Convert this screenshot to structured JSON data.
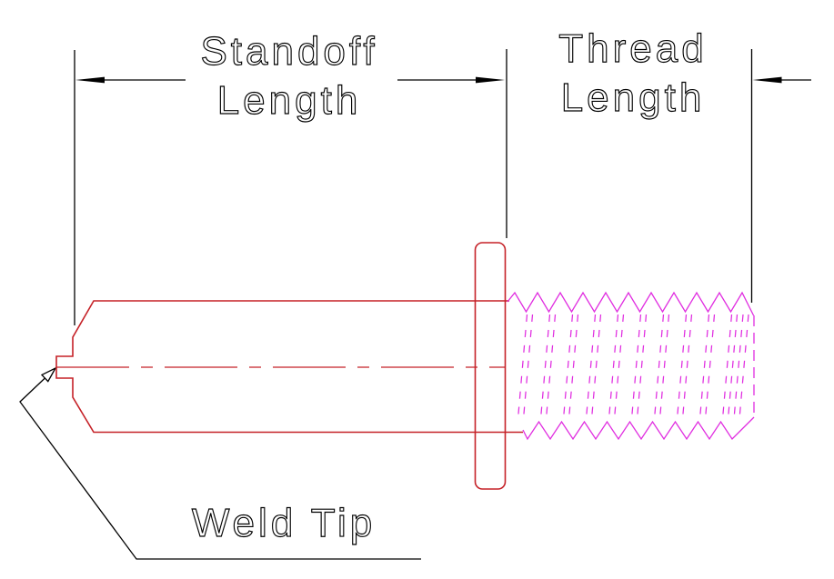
{
  "labels": {
    "standoff_dimension": {
      "line1": "Standoff",
      "line2": "Length"
    },
    "thread_dimension": {
      "line1": "Thread",
      "line2": "Length"
    },
    "weld_tip": {
      "text": "Weld Tip"
    }
  },
  "colors": {
    "background": "#ffffff",
    "annotation": "#000000",
    "stud_outline_red": "#c52127",
    "thread_magenta": "#e02ce0"
  }
}
